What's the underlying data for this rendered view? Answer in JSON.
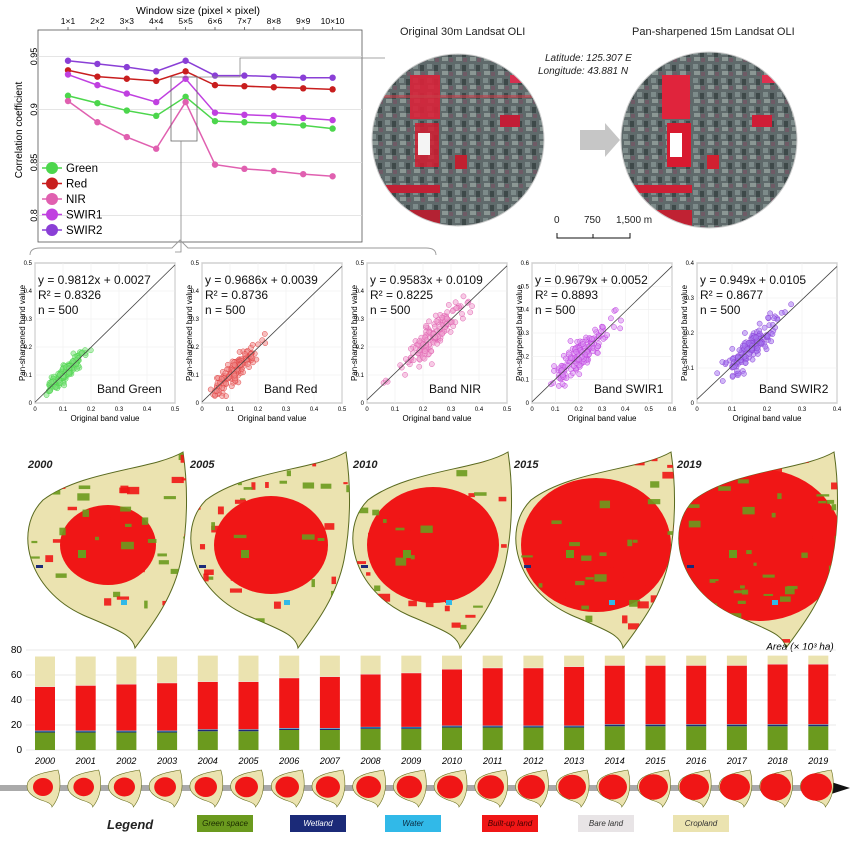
{
  "colors": {
    "green": "#4cd64c",
    "red": "#c81e1e",
    "nir": "#e060b0",
    "swir1": "#c040e0",
    "swir2": "#8a3fd6",
    "green_space": "#6b9a1e",
    "wetland": "#1b2a78",
    "water": "#31b9e8",
    "built_up": "#f01616",
    "bare_land": "#e8e4e6",
    "cropland": "#ebe3b0"
  },
  "chart_data": [
    {
      "type": "line",
      "title": "Window size (pixel × pixel)",
      "xlabel": "",
      "ylabel": "Correlation coefficient",
      "categories": [
        "1×1",
        "2×2",
        "3×3",
        "4×4",
        "5×5",
        "6×6",
        "7×7",
        "8×8",
        "9×9",
        "10×10"
      ],
      "ylim": [
        0.775,
        0.975
      ],
      "yticks": [
        "0.8",
        "0.85",
        "0.9",
        "0.95"
      ],
      "series": [
        {
          "name": "Green",
          "values": [
            0.913,
            0.906,
            0.899,
            0.894,
            0.912,
            0.889,
            0.888,
            0.887,
            0.885,
            0.882
          ]
        },
        {
          "name": "Red",
          "values": [
            0.937,
            0.931,
            0.929,
            0.927,
            0.936,
            0.923,
            0.922,
            0.921,
            0.92,
            0.919
          ]
        },
        {
          "name": "NIR",
          "values": [
            0.908,
            0.888,
            0.874,
            0.863,
            0.907,
            0.848,
            0.844,
            0.842,
            0.839,
            0.837
          ]
        },
        {
          "name": "SWIR1",
          "values": [
            0.933,
            0.923,
            0.915,
            0.907,
            0.929,
            0.897,
            0.895,
            0.894,
            0.892,
            0.89
          ]
        },
        {
          "name": "SWIR2",
          "values": [
            0.946,
            0.943,
            0.94,
            0.936,
            0.946,
            0.932,
            0.932,
            0.931,
            0.93,
            0.93
          ]
        }
      ]
    },
    {
      "type": "scatter",
      "panels": [
        {
          "band": "Band Green",
          "eq": "y = 0.9812x + 0.0027",
          "r2": "R² = 0.8326",
          "n": "n = 500",
          "xlim": [
            0,
            0.5
          ],
          "xticks": [
            "0",
            "0.1",
            "0.2",
            "0.3",
            "0.4",
            "0.5"
          ],
          "yticks": [
            "0",
            "0.1",
            "0.2",
            "0.3",
            "0.4",
            "0.5"
          ],
          "slope": 0.9812,
          "intercept": 0.0027,
          "center": [
            0.11,
            0.11
          ],
          "spread": 0.035
        },
        {
          "band": "Band Red",
          "eq": "y = 0.9686x + 0.0039",
          "r2": "R² = 0.8736",
          "n": "n = 500",
          "xlim": [
            0,
            0.5
          ],
          "xticks": [
            "0",
            "0.1",
            "0.2",
            "0.3",
            "0.4",
            "0.5"
          ],
          "yticks": [
            "0",
            "0.1",
            "0.2",
            "0.3",
            "0.4",
            "0.5"
          ],
          "slope": 0.9686,
          "intercept": 0.0039,
          "center": [
            0.12,
            0.12
          ],
          "spread": 0.045
        },
        {
          "band": "Band NIR",
          "eq": "y = 0.9583x + 0.0109",
          "r2": "R² = 0.8225",
          "n": "n = 500",
          "xlim": [
            0,
            0.5
          ],
          "xticks": [
            "0",
            "0.1",
            "0.2",
            "0.3",
            "0.4",
            "0.5"
          ],
          "yticks": [
            "0",
            "0.1",
            "0.2",
            "0.3",
            "0.4",
            "0.5"
          ],
          "slope": 0.9583,
          "intercept": 0.0109,
          "center": [
            0.24,
            0.24
          ],
          "spread": 0.06
        },
        {
          "band": "Band SWIR1",
          "eq": "y = 0.9679x + 0.0052",
          "r2": "R² = 0.8893",
          "n": "n = 500",
          "xlim": [
            0,
            0.6
          ],
          "xticks": [
            "0",
            "0.1",
            "0.2",
            "0.3",
            "0.4",
            "0.5",
            "0.6"
          ],
          "yticks": [
            "0",
            "0.1",
            "0.2",
            "0.3",
            "0.4",
            "0.5",
            "0.6"
          ],
          "slope": 0.9679,
          "intercept": 0.0052,
          "center": [
            0.22,
            0.22
          ],
          "spread": 0.07
        },
        {
          "band": "Band SWIR2",
          "eq": "y = 0.949x + 0.0105",
          "r2": "R² = 0.8677",
          "n": "n = 500",
          "xlim": [
            0,
            0.4
          ],
          "xticks": [
            "0",
            "0.1",
            "0.2",
            "0.3",
            "0.4"
          ],
          "yticks": [
            "0",
            "0.1",
            "0.2",
            "0.3",
            "0.4"
          ],
          "slope": 0.949,
          "intercept": 0.0105,
          "center": [
            0.15,
            0.15
          ],
          "spread": 0.045
        }
      ],
      "xlabel": "Original band value",
      "ylabel": "Pan-sharpened band value"
    },
    {
      "type": "bar",
      "stacked": true,
      "title": "Area (× 10³ ha)",
      "ylim": [
        0,
        80
      ],
      "yticks": [
        "0",
        "20",
        "40",
        "60",
        "80"
      ],
      "categories": [
        "2000",
        "2001",
        "2002",
        "2003",
        "2004",
        "2005",
        "2006",
        "2007",
        "2008",
        "2009",
        "2010",
        "2011",
        "2012",
        "2013",
        "2014",
        "2015",
        "2016",
        "2017",
        "2018",
        "2019"
      ],
      "series": [
        {
          "name": "Green space",
          "values": [
            14,
            14,
            14,
            14,
            15,
            15,
            16,
            16,
            17,
            17,
            18,
            18,
            18,
            18,
            19,
            19,
            19,
            19,
            19,
            19
          ]
        },
        {
          "name": "Wetland",
          "values": [
            1,
            1,
            1,
            1,
            1,
            1,
            1,
            1,
            1,
            1,
            1,
            1,
            1,
            1,
            1,
            1,
            1,
            1,
            1,
            1
          ]
        },
        {
          "name": "Water",
          "values": [
            0.5,
            0.5,
            0.5,
            0.5,
            0.5,
            0.5,
            0.5,
            0.5,
            0.5,
            0.5,
            0.5,
            0.5,
            0.5,
            0.5,
            0.5,
            0.5,
            0.5,
            0.5,
            0.5,
            0.5
          ]
        },
        {
          "name": "Built-up land",
          "values": [
            35,
            36,
            37,
            38,
            38,
            38,
            40,
            41,
            42,
            43,
            45,
            46,
            46,
            47,
            47,
            47,
            47,
            47,
            48,
            48
          ]
        },
        {
          "name": "Bare land",
          "values": [
            0.3,
            0.3,
            0.3,
            0.3,
            0.3,
            0.3,
            0.3,
            0.3,
            0.3,
            0.3,
            0.3,
            0.3,
            0.3,
            0.3,
            0.3,
            0.3,
            0.3,
            0.3,
            0.3,
            0.3
          ]
        },
        {
          "name": "Cropland",
          "values": [
            24,
            23,
            22,
            21,
            20.7,
            20.7,
            17.7,
            16.7,
            14.7,
            13.7,
            10.7,
            9.7,
            9.7,
            8.7,
            7.7,
            7.7,
            7.7,
            7.7,
            6.7,
            6.7
          ]
        }
      ]
    }
  ],
  "images": {
    "original_title": "Original 30m Landsat OLI",
    "pansharp_title": "Pan-sharpened 15m Landsat OLI",
    "latitude": "Latitude:  125.307 E",
    "longitude": "Longitude:  43.881 N",
    "scale_labels": [
      "0",
      "750",
      "1,500 m"
    ]
  },
  "maps": {
    "years": [
      "2000",
      "2005",
      "2010",
      "2015",
      "2019"
    ]
  },
  "legend": {
    "title": "Legend",
    "items": [
      {
        "label": "Green space",
        "color": "#6b9a1e",
        "text_color": "#1a2a00"
      },
      {
        "label": "Wetland",
        "color": "#1b2a78",
        "text_color": "#ffffff"
      },
      {
        "label": "Water",
        "color": "#31b9e8",
        "text_color": "#0a2a40"
      },
      {
        "label": "Built-up land",
        "color": "#f01616",
        "text_color": "#400000"
      },
      {
        "label": "Bare land",
        "color": "#e8e4e6",
        "text_color": "#333333"
      },
      {
        "label": "Cropland",
        "color": "#ebe3b0",
        "text_color": "#333333"
      }
    ]
  }
}
